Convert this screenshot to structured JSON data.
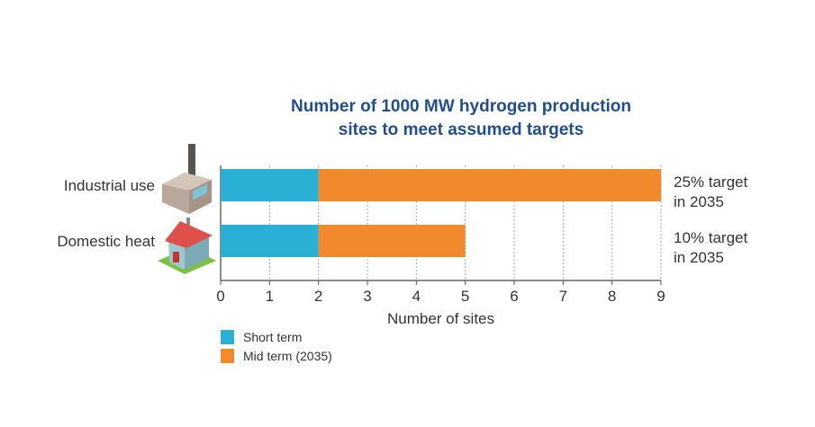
{
  "chart_data": {
    "type": "bar",
    "orientation": "horizontal",
    "stacked": true,
    "title": [
      "Number of 1000 MW hydrogen production",
      "sites to meet assumed targets"
    ],
    "categories": [
      "Industrial use",
      "Domestic heat"
    ],
    "series": [
      {
        "name": "Short term",
        "values": [
          2,
          2
        ],
        "color": "#2ab0d4"
      },
      {
        "name": "Mid term (2035)",
        "values": [
          7,
          3
        ],
        "color": "#f08a2c"
      }
    ],
    "annotations": [
      [
        "25% target",
        "in 2035"
      ],
      [
        "10% target",
        "in 2035"
      ]
    ],
    "xlabel": "Number of sites",
    "xlim": [
      0,
      9
    ],
    "xticks": [
      "0",
      "1",
      "2",
      "3",
      "4",
      "5",
      "6",
      "7",
      "8",
      "9"
    ],
    "grid": true,
    "legend_position": "bottom-left",
    "title_color": "#1f4e8c"
  }
}
